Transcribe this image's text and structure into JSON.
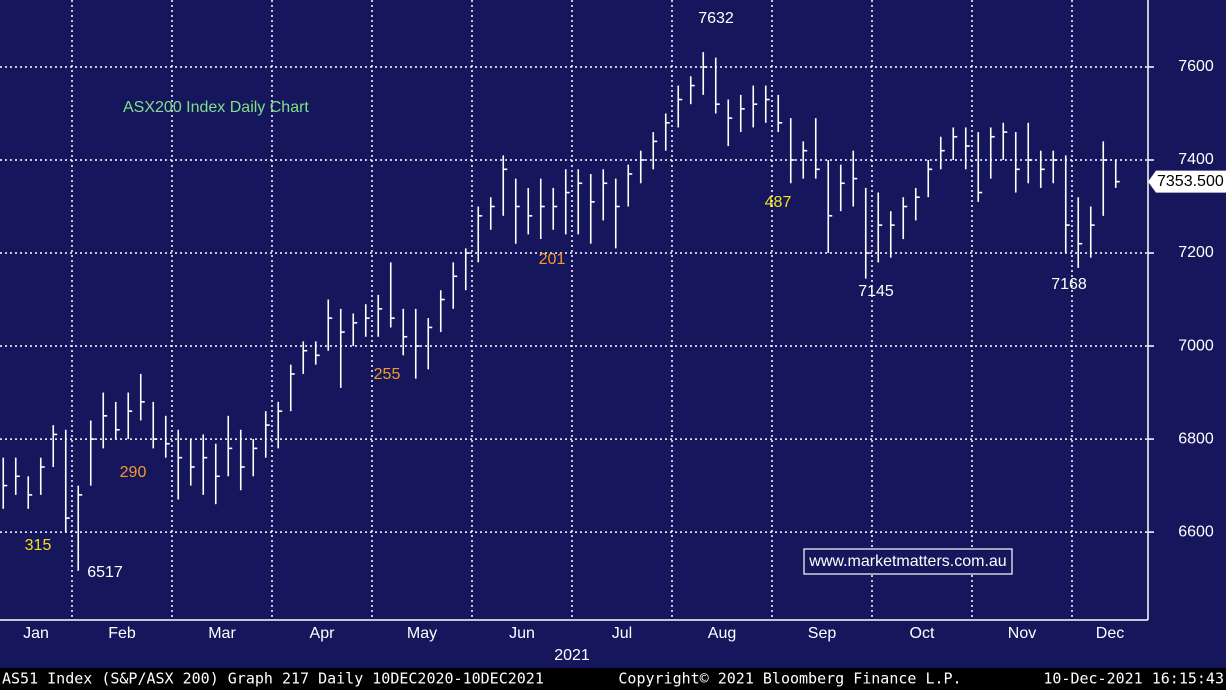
{
  "chart_data": {
    "type": "ohlc",
    "title": "ASX200 Index Daily Chart",
    "year_label": "2021",
    "ylim": [
      6411,
      7744
    ],
    "yticks": [
      6600,
      6800,
      7000,
      7200,
      7400,
      7600
    ],
    "grid": true,
    "color": "#ffffff",
    "last_price": {
      "value": 7353.5,
      "label": "7353.500"
    },
    "months": [
      {
        "label": "Jan",
        "bars": [
          [
            6760,
            6650,
            6700
          ],
          [
            6760,
            6680,
            6720
          ],
          [
            6720,
            6650,
            6680
          ],
          [
            6760,
            6680,
            6740
          ],
          [
            6830,
            6740,
            6810
          ],
          [
            6820,
            6600,
            6630
          ]
        ]
      },
      {
        "label": "Feb",
        "bars": [
          [
            6700,
            6517,
            6680
          ],
          [
            6840,
            6700,
            6800
          ],
          [
            6900,
            6780,
            6850
          ],
          [
            6880,
            6800,
            6820
          ],
          [
            6900,
            6800,
            6860
          ],
          [
            6940,
            6840,
            6880
          ],
          [
            6880,
            6780,
            6800
          ],
          [
            6850,
            6760,
            6790
          ]
        ]
      },
      {
        "label": "Mar",
        "bars": [
          [
            6820,
            6670,
            6760
          ],
          [
            6800,
            6700,
            6740
          ],
          [
            6810,
            6680,
            6760
          ],
          [
            6790,
            6660,
            6720
          ],
          [
            6850,
            6720,
            6780
          ],
          [
            6820,
            6690,
            6740
          ],
          [
            6800,
            6720,
            6780
          ],
          [
            6860,
            6760,
            6830
          ]
        ]
      },
      {
        "label": "Apr",
        "bars": [
          [
            6880,
            6780,
            6860
          ],
          [
            6960,
            6860,
            6940
          ],
          [
            7010,
            6940,
            6990
          ],
          [
            7010,
            6960,
            6980
          ],
          [
            7100,
            6990,
            7060
          ],
          [
            7080,
            6910,
            7030
          ],
          [
            7070,
            7000,
            7050
          ],
          [
            7090,
            7020,
            7060
          ]
        ]
      },
      {
        "label": "May",
        "bars": [
          [
            7110,
            7020,
            7080
          ],
          [
            7180,
            7040,
            7060
          ],
          [
            7080,
            6980,
            7020
          ],
          [
            7080,
            6930,
            7000
          ],
          [
            7060,
            6950,
            7040
          ],
          [
            7120,
            7030,
            7100
          ],
          [
            7180,
            7080,
            7150
          ],
          [
            7210,
            7120,
            7200
          ]
        ]
      },
      {
        "label": "Jun",
        "bars": [
          [
            7300,
            7180,
            7280
          ],
          [
            7320,
            7250,
            7300
          ],
          [
            7410,
            7280,
            7380
          ],
          [
            7360,
            7220,
            7300
          ],
          [
            7340,
            7240,
            7280
          ],
          [
            7360,
            7230,
            7300
          ],
          [
            7340,
            7250,
            7300
          ],
          [
            7380,
            7240,
            7330
          ]
        ]
      },
      {
        "label": "Jul",
        "bars": [
          [
            7380,
            7240,
            7350
          ],
          [
            7370,
            7220,
            7310
          ],
          [
            7380,
            7270,
            7350
          ],
          [
            7360,
            7210,
            7300
          ],
          [
            7390,
            7300,
            7370
          ],
          [
            7420,
            7350,
            7400
          ],
          [
            7460,
            7380,
            7440
          ],
          [
            7500,
            7420,
            7480
          ]
        ]
      },
      {
        "label": "Aug",
        "bars": [
          [
            7560,
            7470,
            7530
          ],
          [
            7580,
            7520,
            7560
          ],
          [
            7632,
            7540,
            7600
          ],
          [
            7620,
            7500,
            7520
          ],
          [
            7530,
            7430,
            7490
          ],
          [
            7540,
            7460,
            7510
          ],
          [
            7560,
            7470,
            7520
          ],
          [
            7560,
            7480,
            7530
          ]
        ]
      },
      {
        "label": "Sep",
        "bars": [
          [
            7540,
            7460,
            7480
          ],
          [
            7490,
            7350,
            7400
          ],
          [
            7440,
            7360,
            7420
          ],
          [
            7490,
            7360,
            7380
          ],
          [
            7400,
            7200,
            7280
          ],
          [
            7390,
            7290,
            7350
          ],
          [
            7420,
            7300,
            7360
          ],
          [
            7340,
            7145,
            7200
          ]
        ]
      },
      {
        "label": "Oct",
        "bars": [
          [
            7330,
            7180,
            7260
          ],
          [
            7290,
            7190,
            7260
          ],
          [
            7320,
            7230,
            7300
          ],
          [
            7340,
            7270,
            7320
          ],
          [
            7400,
            7320,
            7380
          ],
          [
            7450,
            7380,
            7420
          ],
          [
            7470,
            7400,
            7450
          ],
          [
            7470,
            7380,
            7430
          ]
        ]
      },
      {
        "label": "Nov",
        "bars": [
          [
            7460,
            7310,
            7330
          ],
          [
            7470,
            7360,
            7450
          ],
          [
            7480,
            7400,
            7460
          ],
          [
            7460,
            7330,
            7380
          ],
          [
            7480,
            7350,
            7400
          ],
          [
            7420,
            7340,
            7380
          ],
          [
            7420,
            7350,
            7400
          ],
          [
            7410,
            7200,
            7260
          ]
        ]
      },
      {
        "label": "Dec",
        "bars": [
          [
            7320,
            7168,
            7220
          ],
          [
            7300,
            7190,
            7260
          ],
          [
            7440,
            7280,
            7400
          ],
          [
            7400,
            7340,
            7353.5
          ]
        ]
      }
    ],
    "annotations": [
      {
        "text": "7632",
        "color": "#ffffff"
      },
      {
        "text": "6517",
        "color": "#ffffff"
      },
      {
        "text": "7145",
        "color": "#ffffff"
      },
      {
        "text": "7168",
        "color": "#ffffff"
      },
      {
        "text": "315",
        "color": "#f5e21b"
      },
      {
        "text": "290",
        "color": "#f59a2c"
      },
      {
        "text": "255",
        "color": "#f59a2c"
      },
      {
        "text": "201",
        "color": "#f59a2c"
      },
      {
        "text": "487",
        "color": "#f5e21b"
      }
    ],
    "website": "www.marketmatters.com.au",
    "footer": {
      "left": "AS51 Index (S&P/ASX 200) Graph 217  Daily 10DEC2020-10DEC2021",
      "center": "Copyright© 2021 Bloomberg Finance L.P.",
      "right": "10-Dec-2021 16:15:43"
    }
  }
}
